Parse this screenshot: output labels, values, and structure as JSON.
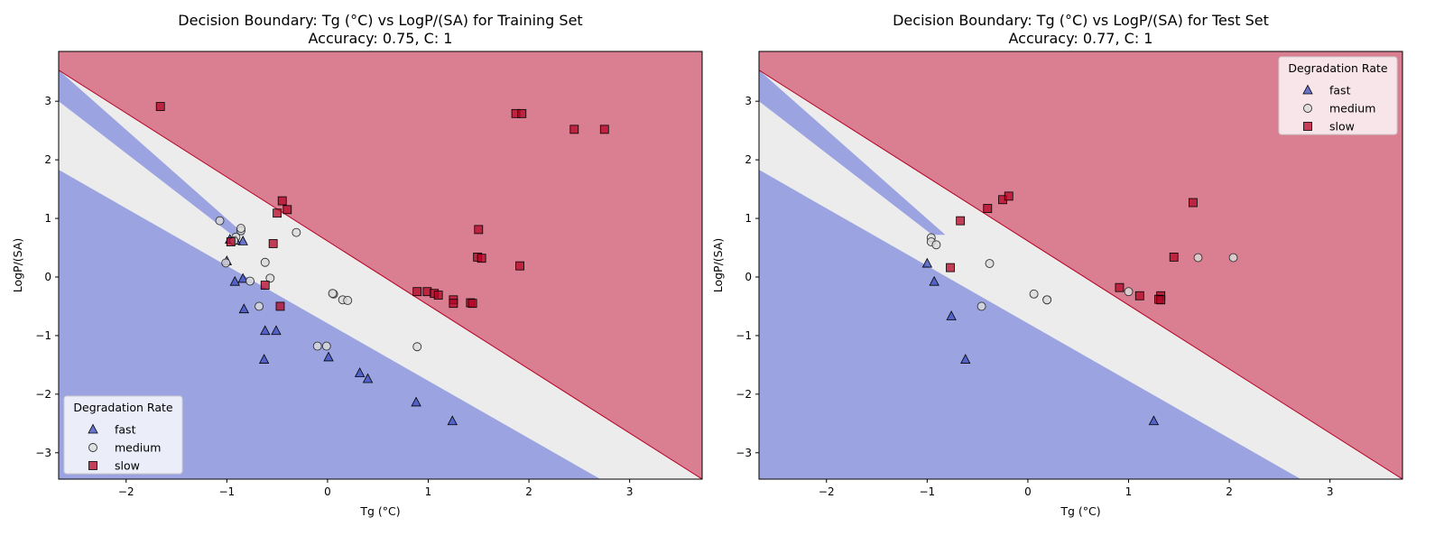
{
  "chart_data": [
    {
      "type": "scatter",
      "title_line1": "Decision Boundary: Tg (°C) vs LogP/(SA) for Training Set",
      "title_line2": "Accuracy: 0.75, C: 1",
      "xlabel": "Tg (°C)",
      "ylabel": "LogP/(SA)",
      "xlim": [
        -2.67,
        3.72
      ],
      "ylim": [
        -3.45,
        3.85
      ],
      "xticks": [
        -2,
        -1,
        0,
        1,
        2,
        3
      ],
      "yticks": [
        -3,
        -2,
        -1,
        0,
        1,
        2,
        3
      ],
      "xtick_labels": [
        "−2",
        "−1",
        "0",
        "1",
        "2",
        "3"
      ],
      "ytick_labels": [
        "−3",
        "−2",
        "−1",
        "0",
        "1",
        "2",
        "3"
      ],
      "grid": false,
      "legend": {
        "title": "Degradation Rate",
        "placement": "lower-left"
      },
      "regions": {
        "lower_boundary": {
          "p1": [
            -2.67,
            1.83
          ],
          "p2": [
            2.71,
            -3.45
          ]
        },
        "upper_boundary": {
          "p1": [
            -2.67,
            3.53
          ],
          "p2": [
            3.72,
            -3.45
          ]
        }
      },
      "colors": {
        "fast": "#9ba4e0",
        "medium": "#ececec",
        "slow": "#d97f91"
      },
      "series": [
        {
          "name": "fast",
          "marker": "triangle",
          "color": "#3b4cc0",
          "points": [
            [
              -0.97,
              0.64
            ],
            [
              -0.91,
              0.62
            ],
            [
              -0.84,
              0.61
            ],
            [
              -0.92,
              -0.08
            ],
            [
              -0.84,
              -0.03
            ],
            [
              -0.83,
              -0.55
            ],
            [
              -0.62,
              -0.92
            ],
            [
              -0.51,
              -0.92
            ],
            [
              -0.63,
              -1.41
            ],
            [
              -1.0,
              0.27
            ],
            [
              0.01,
              -1.37
            ],
            [
              0.32,
              -1.64
            ],
            [
              0.4,
              -1.74
            ],
            [
              0.88,
              -2.14
            ],
            [
              1.24,
              -2.46
            ]
          ]
        },
        {
          "name": "medium",
          "marker": "circle",
          "color": "#dcdcdc",
          "points": [
            [
              -1.07,
              0.96
            ],
            [
              -0.86,
              0.79
            ],
            [
              -0.86,
              0.83
            ],
            [
              -0.91,
              0.68
            ],
            [
              -0.93,
              0.62
            ],
            [
              -1.01,
              0.24
            ],
            [
              -0.62,
              0.25
            ],
            [
              -0.77,
              -0.07
            ],
            [
              -0.57,
              -0.02
            ],
            [
              -0.68,
              -0.5
            ],
            [
              -0.31,
              0.76
            ],
            [
              0.06,
              -0.29
            ],
            [
              0.05,
              -0.28
            ],
            [
              0.15,
              -0.39
            ],
            [
              0.2,
              -0.4
            ],
            [
              -0.1,
              -1.18
            ],
            [
              -0.01,
              -1.18
            ],
            [
              0.89,
              -1.19
            ]
          ]
        },
        {
          "name": "slow",
          "marker": "square",
          "color": "#b40426",
          "points": [
            [
              -1.66,
              2.91
            ],
            [
              -0.96,
              0.6
            ],
            [
              -0.45,
              1.3
            ],
            [
              -0.5,
              1.09
            ],
            [
              -0.4,
              1.15
            ],
            [
              -0.54,
              0.57
            ],
            [
              -0.62,
              -0.14
            ],
            [
              -0.47,
              -0.5
            ],
            [
              1.87,
              2.79
            ],
            [
              1.93,
              2.79
            ],
            [
              2.45,
              2.52
            ],
            [
              2.75,
              2.52
            ],
            [
              1.5,
              0.81
            ],
            [
              1.49,
              0.34
            ],
            [
              1.53,
              0.32
            ],
            [
              1.91,
              0.19
            ],
            [
              0.89,
              -0.25
            ],
            [
              0.99,
              -0.25
            ],
            [
              1.06,
              -0.28
            ],
            [
              1.1,
              -0.31
            ],
            [
              1.25,
              -0.39
            ],
            [
              1.25,
              -0.45
            ],
            [
              1.42,
              -0.44
            ],
            [
              1.44,
              -0.45
            ]
          ]
        }
      ]
    },
    {
      "type": "scatter",
      "title_line1": "Decision Boundary: Tg (°C) vs LogP/(SA) for Test Set",
      "title_line2": "Accuracy: 0.77, C: 1",
      "xlabel": "Tg (°C)",
      "ylabel": "LogP/(SA)",
      "xlim": [
        -2.67,
        3.72
      ],
      "ylim": [
        -3.45,
        3.85
      ],
      "xticks": [
        -2,
        -1,
        0,
        1,
        2,
        3
      ],
      "yticks": [
        -3,
        -2,
        -1,
        0,
        1,
        2,
        3
      ],
      "xtick_labels": [
        "−2",
        "−1",
        "0",
        "1",
        "2",
        "3"
      ],
      "ytick_labels": [
        "−3",
        "−2",
        "−1",
        "0",
        "1",
        "2",
        "3"
      ],
      "grid": false,
      "legend": {
        "title": "Degradation Rate",
        "placement": "upper-right"
      },
      "regions": {
        "lower_boundary": {
          "p1": [
            -2.67,
            1.83
          ],
          "p2": [
            2.71,
            -3.45
          ]
        },
        "upper_boundary": {
          "p1": [
            -2.67,
            3.53
          ],
          "p2": [
            3.72,
            -3.45
          ]
        }
      },
      "colors": {
        "fast": "#9ba4e0",
        "medium": "#ececec",
        "slow": "#d97f91"
      },
      "series": [
        {
          "name": "fast",
          "marker": "triangle",
          "color": "#3b4cc0",
          "points": [
            [
              -1.0,
              0.23
            ],
            [
              -0.93,
              -0.08
            ],
            [
              -0.76,
              -0.67
            ],
            [
              -0.62,
              -1.41
            ],
            [
              1.25,
              -2.46
            ]
          ]
        },
        {
          "name": "medium",
          "marker": "circle",
          "color": "#dcdcdc",
          "points": [
            [
              -0.96,
              0.67
            ],
            [
              -0.96,
              0.6
            ],
            [
              -0.91,
              0.55
            ],
            [
              -0.38,
              0.23
            ],
            [
              -0.46,
              -0.5
            ],
            [
              0.06,
              -0.29
            ],
            [
              0.19,
              -0.39
            ],
            [
              0.19,
              -0.39
            ],
            [
              1.0,
              -0.25
            ],
            [
              1.69,
              0.33
            ],
            [
              2.04,
              0.33
            ]
          ]
        },
        {
          "name": "slow",
          "marker": "square",
          "color": "#b40426",
          "points": [
            [
              -0.67,
              0.96
            ],
            [
              -0.4,
              1.17
            ],
            [
              -0.25,
              1.32
            ],
            [
              -0.19,
              1.38
            ],
            [
              -0.77,
              0.16
            ],
            [
              1.64,
              1.27
            ],
            [
              1.45,
              0.34
            ],
            [
              0.91,
              -0.18
            ],
            [
              1.11,
              -0.32
            ],
            [
              1.32,
              -0.32
            ],
            [
              1.3,
              -0.38
            ],
            [
              1.32,
              -0.39
            ]
          ]
        }
      ]
    }
  ]
}
